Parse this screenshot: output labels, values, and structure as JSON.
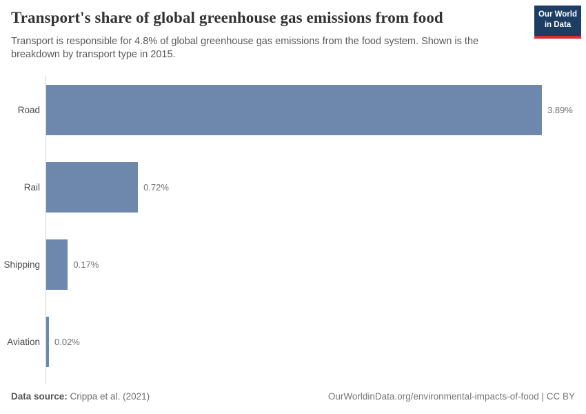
{
  "header": {
    "title": "Transport's share of global greenhouse gas emissions from food",
    "subtitle": "Transport is responsible for 4.8% of global greenhouse gas emissions from the food system. Shown is the breakdown by transport type in 2015.",
    "logo": {
      "line1": "Our World",
      "line2": "in Data"
    }
  },
  "chart_data": {
    "type": "bar",
    "orientation": "horizontal",
    "title": "Transport's share of global greenhouse gas emissions from food",
    "categories": [
      "Road",
      "Rail",
      "Shipping",
      "Aviation"
    ],
    "values": [
      3.89,
      0.72,
      0.17,
      0.02
    ],
    "value_labels": [
      "3.89%",
      "0.72%",
      "0.17%",
      "0.02%"
    ],
    "unit": "%",
    "xlim": [
      0,
      3.89
    ],
    "grid": false,
    "legend": "none",
    "bar_color": "#6d87ad"
  },
  "footer": {
    "source_label": "Data source:",
    "source_value": " Crippa et al. (2021)",
    "license": "OurWorldinData.org/environmental-impacts-of-food | CC BY"
  },
  "colors": {
    "bar": "#6d87ad",
    "axis_line": "#cfcfcf",
    "logo_background": "#1d3d63",
    "logo_accent": "#d1332e",
    "title_text": "#333333",
    "subtitle_text": "#595959"
  }
}
